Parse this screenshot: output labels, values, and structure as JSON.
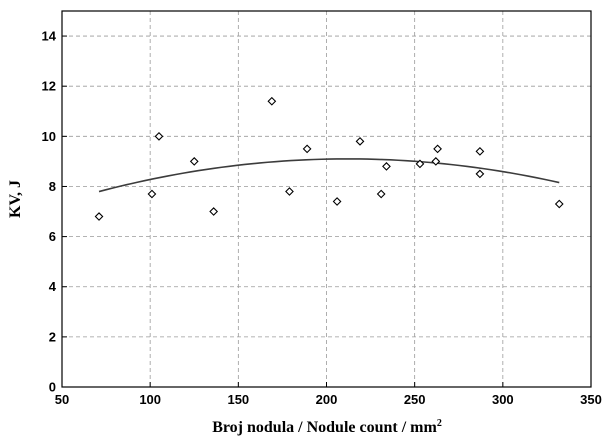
{
  "chart_data": {
    "type": "scatter",
    "xlabel": "Broj nodula / Nodule count / mm",
    "xlabel_superscript": "2",
    "ylabel": "KV, J",
    "xlim": [
      50,
      350
    ],
    "ylim": [
      0,
      15
    ],
    "xticks": [
      50,
      100,
      150,
      200,
      250,
      300,
      350
    ],
    "yticks": [
      0,
      2,
      4,
      6,
      8,
      10,
      12,
      14
    ],
    "grid": true,
    "points": [
      {
        "x": 71,
        "y": 6.8
      },
      {
        "x": 101,
        "y": 7.7
      },
      {
        "x": 105,
        "y": 10.0
      },
      {
        "x": 125,
        "y": 9.0
      },
      {
        "x": 136,
        "y": 7.0
      },
      {
        "x": 169,
        "y": 11.4
      },
      {
        "x": 179,
        "y": 7.8
      },
      {
        "x": 189,
        "y": 9.5
      },
      {
        "x": 206,
        "y": 7.4
      },
      {
        "x": 219,
        "y": 9.8
      },
      {
        "x": 231,
        "y": 7.7
      },
      {
        "x": 234,
        "y": 8.8
      },
      {
        "x": 253,
        "y": 8.9
      },
      {
        "x": 262,
        "y": 9.0
      },
      {
        "x": 263,
        "y": 9.5
      },
      {
        "x": 287,
        "y": 9.4
      },
      {
        "x": 287,
        "y": 8.5
      },
      {
        "x": 332,
        "y": 7.3
      }
    ],
    "fit": {
      "type": "quadratic",
      "x_range": [
        71,
        332
      ],
      "vertex_x": 212,
      "vertex_y": 9.1,
      "a": -6.55e-05
    }
  }
}
